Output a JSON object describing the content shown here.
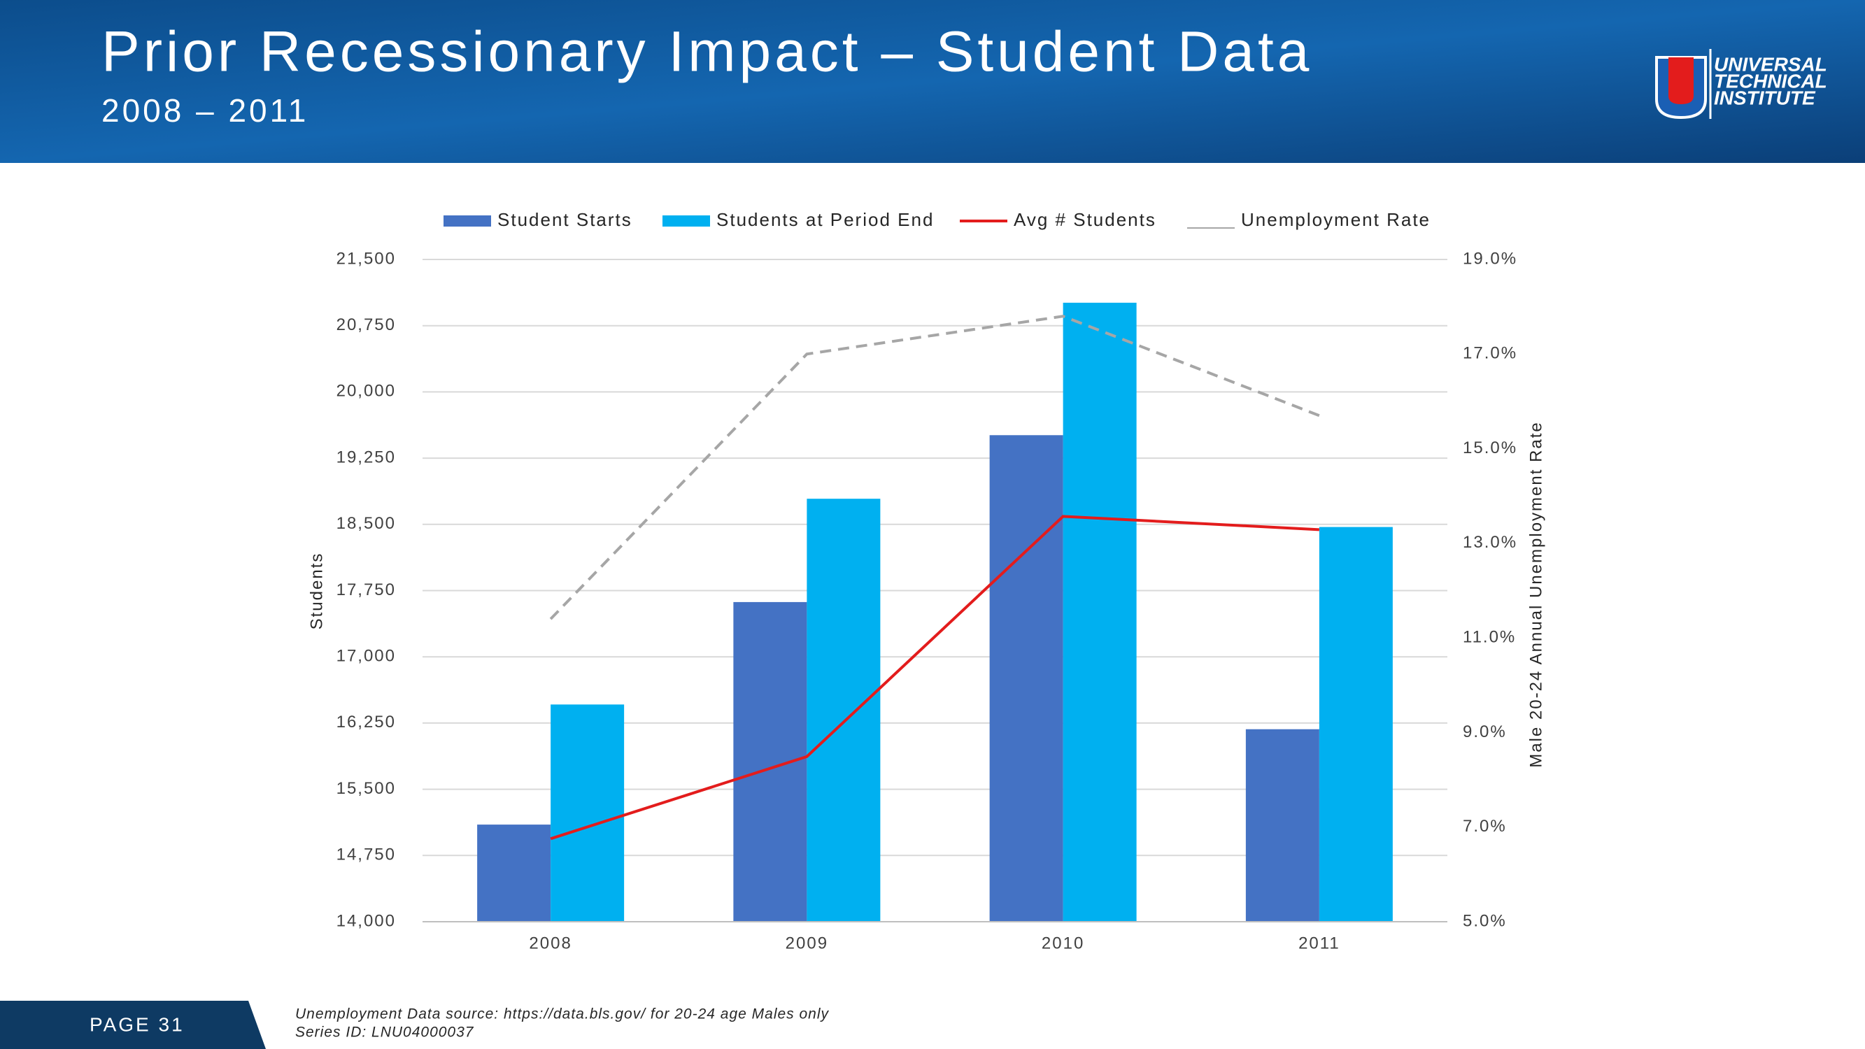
{
  "chart_data": {
    "type": "bar",
    "title": "Prior Recessionary Impact – Student Data",
    "subtitle": "2008 – 2011",
    "categories": [
      "2008",
      "2009",
      "2010",
      "2011"
    ],
    "series": [
      {
        "name": "Student Starts",
        "type": "bar",
        "color": "#4472c4",
        "values": [
          15100,
          17620,
          19510,
          16180
        ]
      },
      {
        "name": "Students at Period End",
        "type": "bar",
        "color": "#00b0f0",
        "values": [
          16460,
          18790,
          21010,
          18470
        ]
      },
      {
        "name": "Avg # Students",
        "type": "line",
        "color": "#e31c1c",
        "values": [
          14940,
          15870,
          18590,
          18440
        ]
      },
      {
        "name": "Unemployment Rate",
        "type": "line",
        "axis": "y2",
        "color": "#a6a6a6",
        "dashed": true,
        "values": [
          11.4,
          17.0,
          17.8,
          15.7
        ]
      }
    ],
    "ylabel": "Students",
    "y2label": "Male 20-24 Annual Unemployment Rate",
    "ylim": [
      14000,
      21500
    ],
    "yticks": [
      {
        "value": 14000,
        "label": "14,000"
      },
      {
        "value": 14750,
        "label": "14,750"
      },
      {
        "value": 15500,
        "label": "15,500"
      },
      {
        "value": 16250,
        "label": "16,250"
      },
      {
        "value": 17000,
        "label": "17,000"
      },
      {
        "value": 17750,
        "label": "17,750"
      },
      {
        "value": 18500,
        "label": "18,500"
      },
      {
        "value": 19250,
        "label": "19,250"
      },
      {
        "value": 20000,
        "label": "20,000"
      },
      {
        "value": 20750,
        "label": "20,750"
      },
      {
        "value": 21500,
        "label": "21,500"
      }
    ],
    "y2lim": [
      5,
      19
    ],
    "y2ticks": [
      {
        "value": 5,
        "label": "5.0%"
      },
      {
        "value": 7,
        "label": "7.0%"
      },
      {
        "value": 9,
        "label": "9.0%"
      },
      {
        "value": 11,
        "label": "11.0%"
      },
      {
        "value": 13,
        "label": "13.0%"
      },
      {
        "value": 15,
        "label": "15.0%"
      },
      {
        "value": 17,
        "label": "17.0%"
      },
      {
        "value": 19,
        "label": "19.0%"
      }
    ],
    "grid": true,
    "legend": "top"
  },
  "logo": {
    "lines": [
      "UNIVERSAL",
      "TECHNICAL",
      "INSTITUTE"
    ]
  },
  "footer": {
    "page": "PAGE 31",
    "source": [
      "Unemployment Data source: https://data.bls.gov/ for 20-24 age Males only",
      "Series ID: LNU04000037"
    ]
  }
}
